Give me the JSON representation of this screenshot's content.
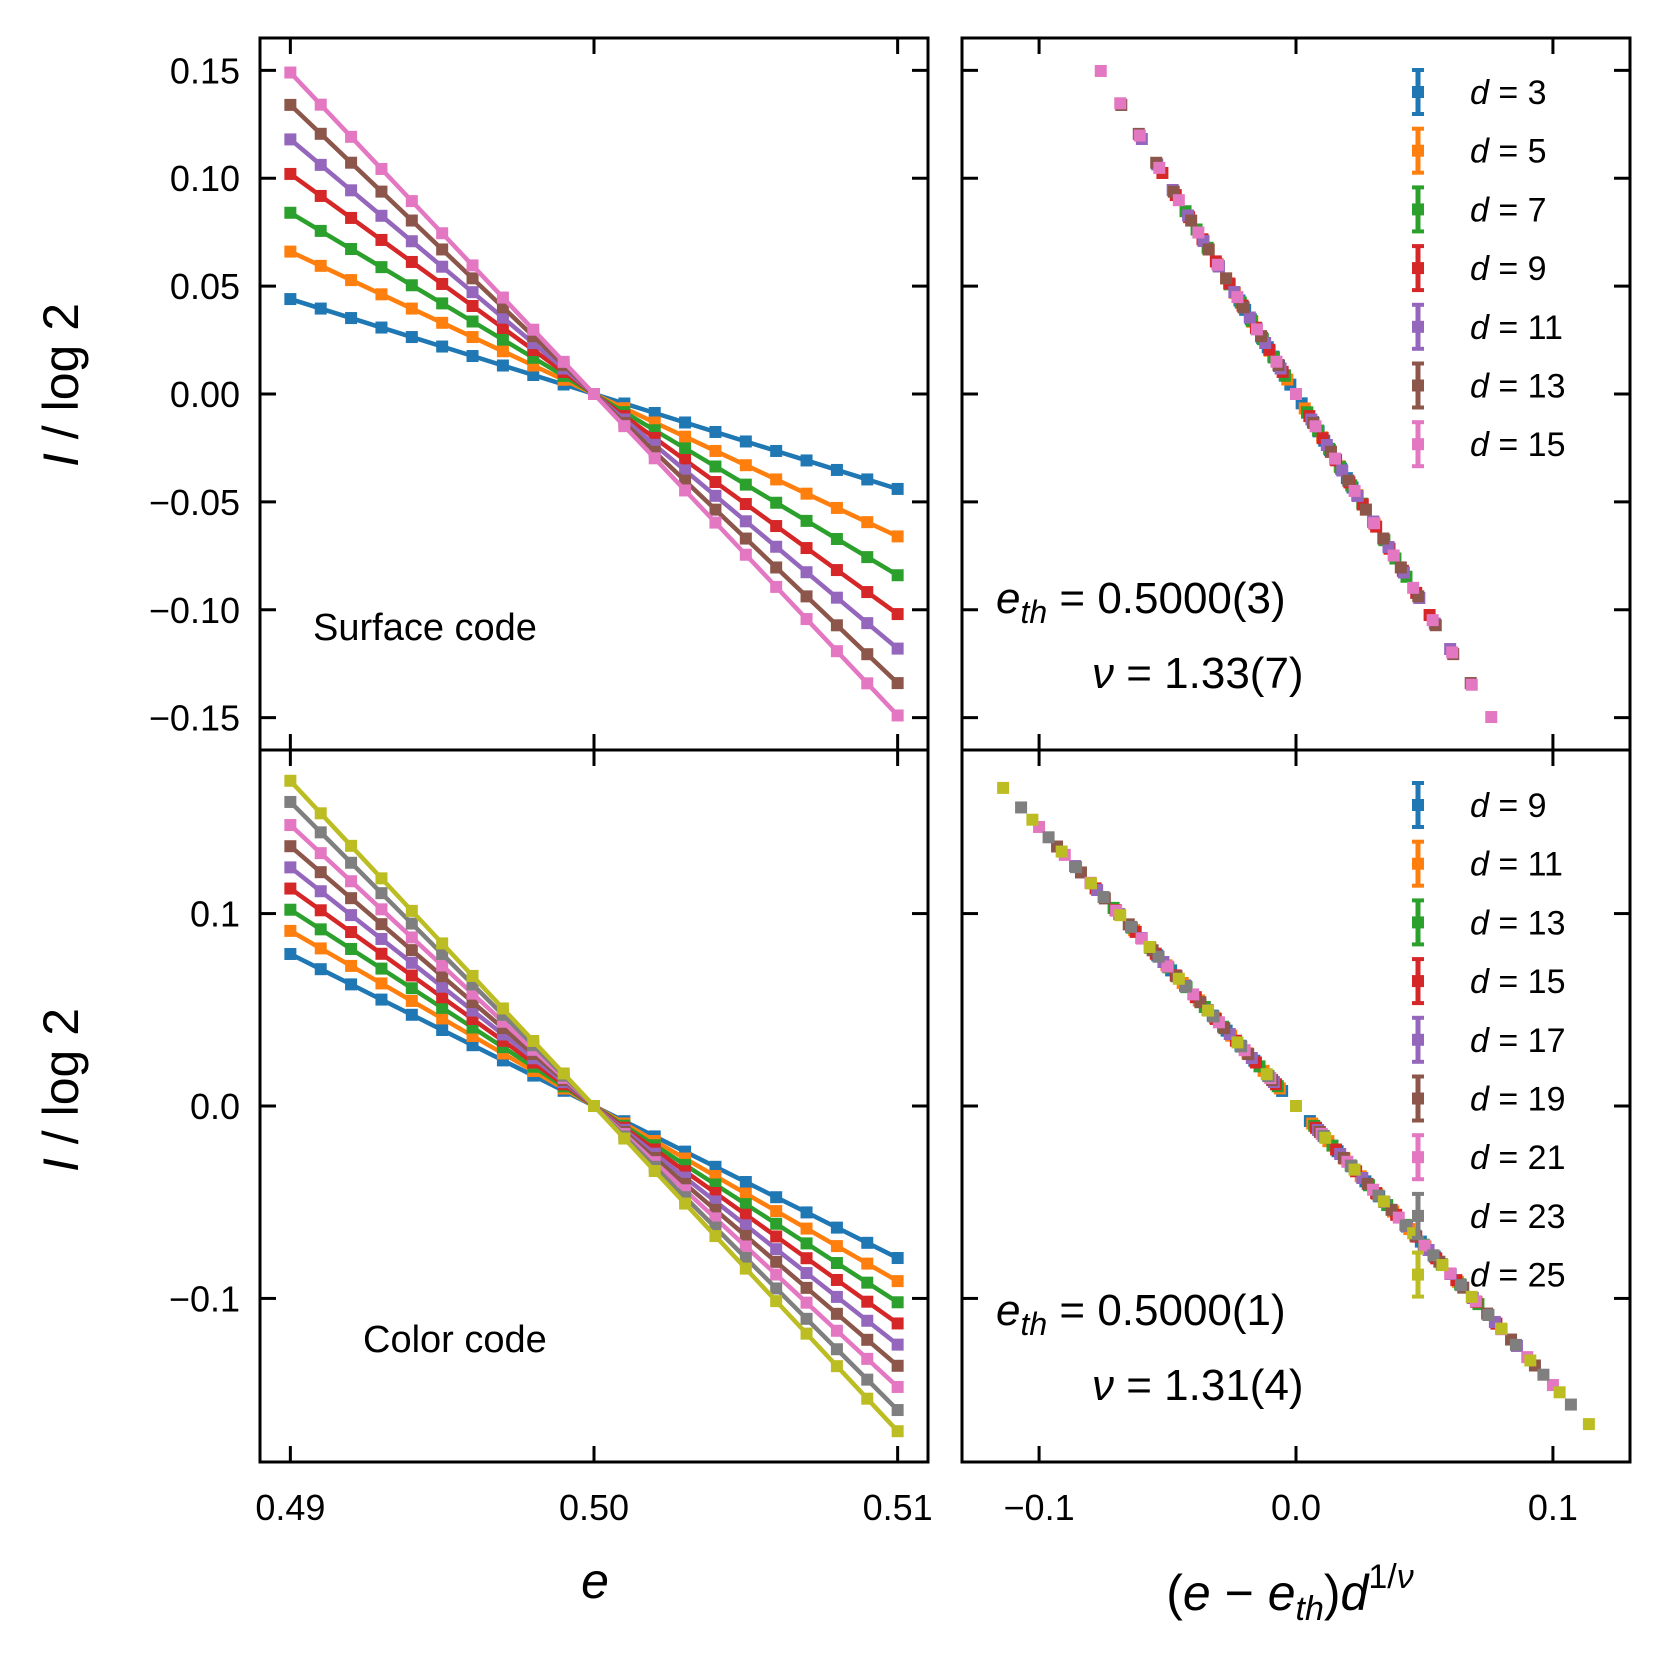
{
  "figure": {
    "ylabel": "I / log 2",
    "xlabel_left": "e",
    "xlabel_right": "(e − e_th)d^{1/ν}"
  },
  "colors": [
    "#1f77b4",
    "#ff7f0e",
    "#2ca02c",
    "#d62728",
    "#9467bd",
    "#8c564b",
    "#e377c2",
    "#7f7f7f",
    "#bcbd22"
  ],
  "chart_data": [
    {
      "id": "surface-raw",
      "type": "line",
      "annotation": "Surface code",
      "xlim": [
        0.489,
        0.511
      ],
      "ylim": [
        -0.165,
        0.165
      ],
      "xticks": [
        0.49,
        0.5,
        0.51
      ],
      "xtick_labels": [
        "0.49",
        "0.50",
        "0.51"
      ],
      "yticks": [
        -0.15,
        -0.1,
        -0.05,
        0.0,
        0.05,
        0.1,
        0.15
      ],
      "ytick_labels": [
        "−0.15",
        "−0.10",
        "−0.05",
        "0.00",
        "0.05",
        "0.10",
        "0.15"
      ],
      "x": {
        "start": 0.49,
        "stop": 0.51,
        "count": 21
      },
      "series": [
        {
          "name": "d = 3",
          "slope": -4.4,
          "color_index": 0
        },
        {
          "name": "d = 5",
          "slope": -6.6,
          "color_index": 1
        },
        {
          "name": "d = 7",
          "slope": -8.4,
          "color_index": 2
        },
        {
          "name": "d = 9",
          "slope": -10.2,
          "color_index": 3
        },
        {
          "name": "d = 11",
          "slope": -11.8,
          "color_index": 4
        },
        {
          "name": "d = 13",
          "slope": -13.4,
          "color_index": 5
        },
        {
          "name": "d = 15",
          "slope": -14.9,
          "color_index": 6
        }
      ]
    },
    {
      "id": "surface-collapse",
      "type": "scatter",
      "xlim": [
        -0.13,
        0.13
      ],
      "ylim": [
        -0.165,
        0.165
      ],
      "xticks": [
        -0.1,
        0.0,
        0.1
      ],
      "ytick_positions": [
        -0.15,
        -0.1,
        -0.05,
        0.0,
        0.05,
        0.1,
        0.15
      ],
      "legend": [
        "d = 3",
        "d = 5",
        "d = 7",
        "d = 9",
        "d = 11",
        "d = 13",
        "d = 15"
      ],
      "fit": {
        "e_th": "0.5000(3)",
        "nu": "1.33(7)",
        "slope": -1.97
      },
      "annotation_lines": [
        "= 0.5000(3)",
        "= 1.33(7)"
      ],
      "series": [
        {
          "name": "d = 3",
          "x_range": [
            -0.022,
            0.022
          ],
          "color_index": 0
        },
        {
          "name": "d = 5",
          "x_range": [
            -0.034,
            0.034
          ],
          "color_index": 1
        },
        {
          "name": "d = 7",
          "x_range": [
            -0.043,
            0.043
          ],
          "color_index": 2
        },
        {
          "name": "d = 9",
          "x_range": [
            -0.052,
            0.052
          ],
          "color_index": 3
        },
        {
          "name": "d = 11",
          "x_range": [
            -0.06,
            0.06
          ],
          "color_index": 4
        },
        {
          "name": "d = 13",
          "x_range": [
            -0.068,
            0.068
          ],
          "color_index": 5
        },
        {
          "name": "d = 15",
          "x_range": [
            -0.076,
            0.076
          ],
          "color_index": 6
        }
      ]
    },
    {
      "id": "color-raw",
      "type": "line",
      "annotation": "Color code",
      "xlim": [
        0.489,
        0.511
      ],
      "ylim": [
        -0.185,
        0.185
      ],
      "xticks": [
        0.49,
        0.5,
        0.51
      ],
      "xtick_labels": [
        "0.49",
        "0.50",
        "0.51"
      ],
      "yticks": [
        -0.1,
        0.0,
        0.1
      ],
      "ytick_labels": [
        "−0.1",
        "0.0",
        "0.1"
      ],
      "x": {
        "start": 0.49,
        "stop": 0.51,
        "count": 21
      },
      "series": [
        {
          "name": "d = 9",
          "slope": -7.9,
          "color_index": 0
        },
        {
          "name": "d = 11",
          "slope": -9.1,
          "color_index": 1
        },
        {
          "name": "d = 13",
          "slope": -10.2,
          "color_index": 2
        },
        {
          "name": "d = 15",
          "slope": -11.3,
          "color_index": 3
        },
        {
          "name": "d = 17",
          "slope": -12.4,
          "color_index": 4
        },
        {
          "name": "d = 19",
          "slope": -13.5,
          "color_index": 5
        },
        {
          "name": "d = 21",
          "slope": -14.6,
          "color_index": 6
        },
        {
          "name": "d = 23",
          "slope": -15.8,
          "color_index": 7
        },
        {
          "name": "d = 25",
          "slope": -16.9,
          "color_index": 8
        }
      ]
    },
    {
      "id": "color-collapse",
      "type": "scatter",
      "xlim": [
        -0.13,
        0.13
      ],
      "ylim": [
        -0.185,
        0.185
      ],
      "xticks": [
        -0.1,
        0.0,
        0.1
      ],
      "xtick_labels": [
        "−0.1",
        "0.0",
        "0.1"
      ],
      "ytick_positions": [
        -0.1,
        0.0,
        0.1
      ],
      "legend": [
        "d = 9",
        "d = 11",
        "d = 13",
        "d = 15",
        "d = 17",
        "d = 19",
        "d = 21",
        "d = 23",
        "d = 25"
      ],
      "fit": {
        "e_th": "0.5000(1)",
        "nu": "1.31(4)",
        "slope": -1.45
      },
      "annotation_lines": [
        "= 0.5000(1)",
        "= 1.31(4)"
      ],
      "series": [
        {
          "name": "d = 9",
          "x_range": [
            -0.054,
            0.054
          ],
          "color_index": 0
        },
        {
          "name": "d = 11",
          "x_range": [
            -0.063,
            0.063
          ],
          "color_index": 1
        },
        {
          "name": "d = 13",
          "x_range": [
            -0.071,
            0.071
          ],
          "color_index": 2
        },
        {
          "name": "d = 15",
          "x_range": [
            -0.078,
            0.078
          ],
          "color_index": 3
        },
        {
          "name": "d = 17",
          "x_range": [
            -0.086,
            0.086
          ],
          "color_index": 4
        },
        {
          "name": "d = 19",
          "x_range": [
            -0.093,
            0.093
          ],
          "color_index": 5
        },
        {
          "name": "d = 21",
          "x_range": [
            -0.1,
            0.1
          ],
          "color_index": 6
        },
        {
          "name": "d = 23",
          "x_range": [
            -0.107,
            0.107
          ],
          "color_index": 7
        },
        {
          "name": "d = 25",
          "x_range": [
            -0.114,
            0.114
          ],
          "color_index": 8
        }
      ]
    }
  ]
}
